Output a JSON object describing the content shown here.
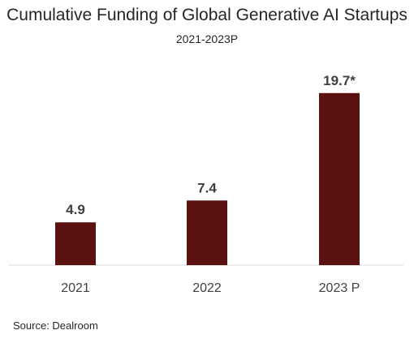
{
  "chart_data": {
    "type": "bar",
    "title": "Cumulative Funding of Global Generative AI Startups",
    "subtitle": "2021-2023P",
    "categories": [
      "2021",
      "2022",
      "2023 P"
    ],
    "values": [
      4.9,
      7.4,
      19.7
    ],
    "data_labels": [
      "4.9",
      "7.4",
      "19.7*"
    ],
    "xlabel": "",
    "ylabel": "",
    "ylim": [
      0,
      22
    ],
    "grid": false,
    "legend": "none",
    "bar_color": "#5c1111"
  },
  "source": "Source: Dealroom"
}
